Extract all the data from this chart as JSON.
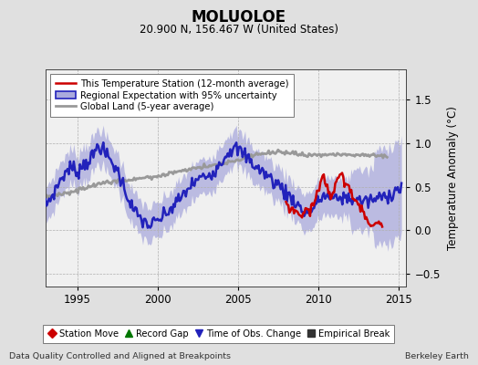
{
  "title": "MOLUOLOE",
  "subtitle": "20.900 N, 156.467 W (United States)",
  "xlabel_left": "Data Quality Controlled and Aligned at Breakpoints",
  "xlabel_right": "Berkeley Earth",
  "ylabel": "Temperature Anomaly (°C)",
  "xlim": [
    1993.0,
    2015.5
  ],
  "ylim": [
    -0.65,
    1.85
  ],
  "yticks": [
    -0.5,
    0.0,
    0.5,
    1.0,
    1.5
  ],
  "xticks": [
    1995,
    2000,
    2005,
    2010,
    2015
  ],
  "background_color": "#e0e0e0",
  "plot_background": "#f0f0f0",
  "grid_color": "#b0b0b0",
  "blue_line_color": "#2222bb",
  "blue_fill_color": "#aaaadd",
  "red_line_color": "#cc0000",
  "gray_line_color": "#999999",
  "legend1_entries": [
    {
      "label": "This Temperature Station (12-month average)",
      "color": "#cc0000",
      "lw": 1.8
    },
    {
      "label": "Regional Expectation with 95% uncertainty",
      "color": "#2222bb",
      "lw": 1.8,
      "fill_color": "#aaaadd"
    },
    {
      "label": "Global Land (5-year average)",
      "color": "#999999",
      "lw": 2.0
    }
  ],
  "legend2_entries": [
    {
      "label": "Station Move",
      "marker": "D",
      "color": "#cc0000"
    },
    {
      "label": "Record Gap",
      "marker": "^",
      "color": "#007700"
    },
    {
      "label": "Time of Obs. Change",
      "marker": "v",
      "color": "#2222bb"
    },
    {
      "label": "Empirical Break",
      "marker": "s",
      "color": "#333333"
    }
  ]
}
